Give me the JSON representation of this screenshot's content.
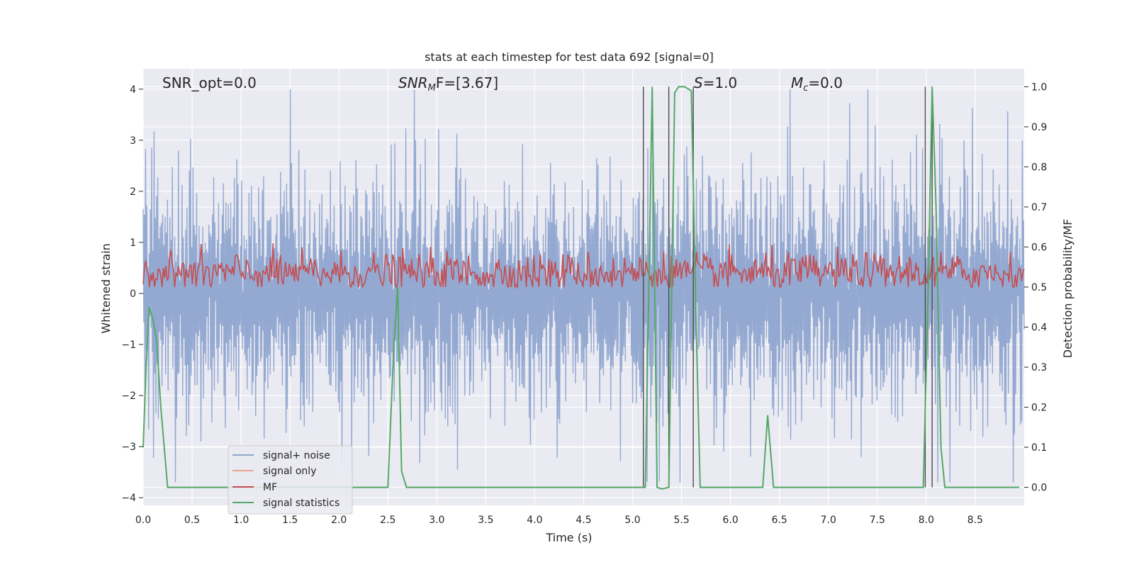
{
  "chart_data": {
    "type": "line",
    "title": "stats at each timestep for test data 692 [signal=0]",
    "xlabel": "Time (s)",
    "ylabel": "Whitened strain",
    "y2label": "Detection probability/MF",
    "xlim": [
      0,
      9.0
    ],
    "ylim": [
      -4.15,
      4.4
    ],
    "y2lim": [
      -0.045,
      1.045
    ],
    "x_ticks": [
      "0.0",
      "0.5",
      "1.0",
      "1.5",
      "2.0",
      "2.5",
      "3.0",
      "3.5",
      "4.0",
      "4.5",
      "5.0",
      "5.5",
      "6.0",
      "6.5",
      "7.0",
      "7.5",
      "8.0",
      "8.5"
    ],
    "y_ticks": [
      "4",
      "3",
      "2",
      "1",
      "0",
      "−1",
      "−2",
      "−3",
      "−4"
    ],
    "y2_ticks": [
      "1.0",
      "0.9",
      "0.8",
      "0.7",
      "0.6",
      "0.5",
      "0.4",
      "0.3",
      "0.2",
      "0.1",
      "0.0"
    ],
    "grid": true,
    "legend": {
      "placement": "lower-left",
      "entries": [
        {
          "label": "signal+ noise",
          "color": "#8fa5cf"
        },
        {
          "label": "signal only",
          "color": "#e8a58a"
        },
        {
          "label": "MF",
          "color": "#c44e52"
        },
        {
          "label": "signal statistics",
          "color": "#55a868"
        }
      ]
    },
    "annotations": {
      "snr_opt": "SNR_opt=0.0",
      "snr_mf_name": "SNR",
      "snr_mf_sub": "M",
      "snr_mf_rest": "F=[3.67]",
      "s_name": "S",
      "s_rest": "=1.0",
      "mc_name": "M",
      "mc_sub": "c",
      "mc_rest": "=0.0"
    },
    "series": [
      {
        "name": "signal+ noise",
        "color": "#8fa5cf",
        "note": "whitened strain noise, amplitude ~±2.4, range -3.7..4.0"
      },
      {
        "name": "signal only",
        "color": "#e8a58a",
        "values": []
      },
      {
        "name": "MF",
        "color": "#c44e52",
        "note": "matched filter output on right axis, ~0.52..0.62"
      },
      {
        "name": "signal statistics",
        "color": "#55a868",
        "x": [
          0.0,
          0.03,
          0.06,
          0.1,
          0.14,
          0.18,
          0.25,
          0.35,
          2.5,
          2.56,
          2.6,
          2.64,
          2.69,
          2.75,
          5.13,
          5.17,
          5.2,
          5.25,
          5.3,
          5.37,
          5.4,
          5.43,
          5.47,
          5.53,
          5.6,
          5.65,
          5.69,
          6.33,
          6.38,
          6.44,
          7.97,
          8.02,
          8.06,
          8.1,
          8.15,
          8.19,
          8.25,
          8.95
        ],
        "y": [
          0.1,
          0.3,
          0.45,
          0.42,
          0.36,
          0.2,
          0.0,
          0.0,
          0.0,
          0.35,
          0.5,
          0.04,
          0.0,
          0.0,
          0.0,
          0.55,
          1.0,
          0.0,
          -0.004,
          0.0,
          0.5,
          0.985,
          1.0,
          1.0,
          0.99,
          0.4,
          0.0,
          0.0,
          0.18,
          0.0,
          0.0,
          0.5,
          1.0,
          0.7,
          0.1,
          0.0,
          0.0,
          0.0
        ]
      }
    ],
    "vertical_lines": [
      5.11,
      5.37,
      5.62,
      7.99,
      8.06
    ]
  }
}
